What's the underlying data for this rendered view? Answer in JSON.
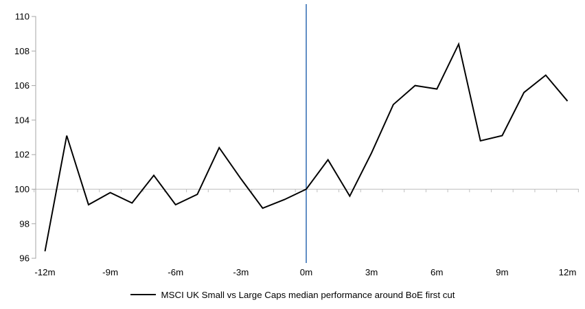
{
  "chart_data": {
    "type": "line",
    "title": "",
    "legend": "MSCI UK Small vs Large Caps median performance around BoE first cut",
    "x": [
      -12,
      -11,
      -10,
      -9,
      -8,
      -7,
      -6,
      -5,
      -4,
      -3,
      -2,
      -1,
      0,
      1,
      2,
      3,
      4,
      5,
      6,
      7,
      8,
      9,
      10,
      11,
      12
    ],
    "series": [
      {
        "name": "MSCI UK Small vs Large Caps median performance around BoE first cut",
        "color": "#000000",
        "values": [
          96.4,
          103.1,
          99.1,
          99.8,
          99.2,
          100.8,
          99.1,
          99.7,
          102.4,
          100.6,
          98.9,
          99.4,
          100.0,
          101.7,
          99.6,
          102.1,
          104.9,
          106.0,
          105.8,
          108.4,
          102.8,
          103.1,
          105.6,
          106.6,
          105.1
        ]
      }
    ],
    "xticks": [
      -12,
      -9,
      -6,
      -3,
      0,
      3,
      6,
      9,
      12
    ],
    "xticklabels": [
      "-12m",
      "-9m",
      "-6m",
      "-3m",
      "0m",
      "3m",
      "6m",
      "9m",
      "12m"
    ],
    "yticks": [
      96,
      98,
      100,
      102,
      104,
      106,
      108,
      110
    ],
    "yticklabels": [
      "96",
      "98",
      "100",
      "102",
      "104",
      "106",
      "108",
      "110"
    ],
    "ylim": [
      96,
      110
    ],
    "xlim": [
      -12.5,
      12.5
    ],
    "baseline_value": 100,
    "event_line_x": 0,
    "grid": false,
    "legend_position": "bottom-center",
    "colors": {
      "series_line": "#000000",
      "event_line": "#4f81bd",
      "baseline": "#bfbfbf",
      "axis": "#a6a6a6",
      "text": "#000000",
      "background": "#ffffff"
    }
  }
}
